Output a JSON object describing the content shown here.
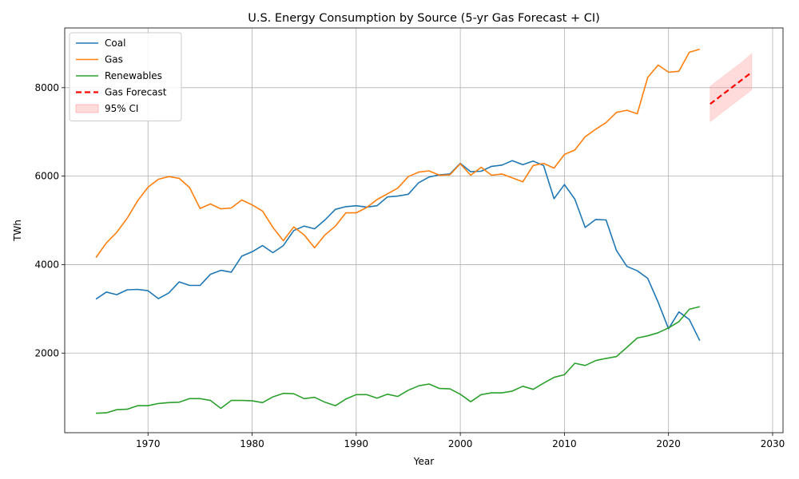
{
  "chart_data": {
    "type": "line",
    "title": "U.S. Energy Consumption by Source (5-yr Gas Forecast + CI)",
    "xlabel": "Year",
    "ylabel": "TWh",
    "xlim": [
      1962,
      2031
    ],
    "ylim": [
      200,
      9350
    ],
    "x_ticks": [
      1970,
      1980,
      1990,
      2000,
      2010,
      2020,
      2030
    ],
    "y_ticks": [
      2000,
      4000,
      6000,
      8000
    ],
    "grid": true,
    "legend_position": "upper-left",
    "series": [
      {
        "name": "Coal",
        "color": "#1f77b4",
        "style": "solid",
        "x": [
          1965,
          1966,
          1967,
          1968,
          1969,
          1970,
          1971,
          1972,
          1973,
          1974,
          1975,
          1976,
          1977,
          1978,
          1979,
          1980,
          1981,
          1982,
          1983,
          1984,
          1985,
          1986,
          1987,
          1988,
          1989,
          1990,
          1991,
          1992,
          1993,
          1994,
          1995,
          1996,
          1997,
          1998,
          1999,
          2000,
          2001,
          2002,
          2003,
          2004,
          2005,
          2006,
          2007,
          2008,
          2009,
          2010,
          2011,
          2012,
          2013,
          2014,
          2015,
          2016,
          2017,
          2018,
          2019,
          2020,
          2021,
          2022,
          2023
        ],
        "values": [
          3220,
          3380,
          3320,
          3430,
          3440,
          3410,
          3230,
          3360,
          3610,
          3530,
          3530,
          3780,
          3870,
          3830,
          4190,
          4290,
          4430,
          4270,
          4430,
          4770,
          4870,
          4810,
          5010,
          5250,
          5310,
          5330,
          5300,
          5330,
          5530,
          5550,
          5590,
          5850,
          5980,
          6030,
          6050,
          6290,
          6100,
          6110,
          6220,
          6250,
          6350,
          6260,
          6340,
          6240,
          5490,
          5810,
          5480,
          4840,
          5020,
          5010,
          4320,
          3960,
          3860,
          3690,
          3150,
          2550,
          2930,
          2760,
          2280
        ]
      },
      {
        "name": "Gas",
        "color": "#ff7f0e",
        "style": "solid",
        "x": [
          1965,
          1966,
          1967,
          1968,
          1969,
          1970,
          1971,
          1972,
          1973,
          1974,
          1975,
          1976,
          1977,
          1978,
          1979,
          1980,
          1981,
          1982,
          1983,
          1984,
          1985,
          1986,
          1987,
          1988,
          1989,
          1990,
          1991,
          1992,
          1993,
          1994,
          1995,
          1996,
          1997,
          1998,
          1999,
          2000,
          2001,
          2002,
          2003,
          2004,
          2005,
          2006,
          2007,
          2008,
          2009,
          2010,
          2011,
          2012,
          2013,
          2014,
          2015,
          2016,
          2017,
          2018,
          2019,
          2020,
          2021,
          2022,
          2023
        ],
        "values": [
          4160,
          4490,
          4730,
          5050,
          5440,
          5750,
          5930,
          5990,
          5950,
          5740,
          5270,
          5370,
          5260,
          5280,
          5460,
          5350,
          5210,
          4840,
          4540,
          4850,
          4670,
          4380,
          4670,
          4870,
          5170,
          5170,
          5290,
          5470,
          5600,
          5730,
          5990,
          6090,
          6120,
          6020,
          6030,
          6280,
          6020,
          6200,
          6020,
          6050,
          5960,
          5870,
          6240,
          6290,
          6180,
          6490,
          6590,
          6890,
          7060,
          7210,
          7440,
          7490,
          7410,
          8230,
          8510,
          8350,
          8370,
          8800,
          8870
        ]
      },
      {
        "name": "Renewables",
        "color": "#2ca02c",
        "style": "solid",
        "x": [
          1965,
          1966,
          1967,
          1968,
          1969,
          1970,
          1971,
          1972,
          1973,
          1974,
          1975,
          1976,
          1977,
          1978,
          1979,
          1980,
          1981,
          1982,
          1983,
          1984,
          1985,
          1986,
          1987,
          1988,
          1989,
          1990,
          1991,
          1992,
          1993,
          1994,
          1995,
          1996,
          1997,
          1998,
          1999,
          2000,
          2001,
          2002,
          2003,
          2004,
          2005,
          2006,
          2007,
          2008,
          2009,
          2010,
          2011,
          2012,
          2013,
          2014,
          2015,
          2016,
          2017,
          2018,
          2019,
          2020,
          2021,
          2022,
          2023
        ],
        "values": [
          640,
          650,
          720,
          730,
          810,
          810,
          860,
          880,
          890,
          970,
          970,
          930,
          750,
          930,
          930,
          920,
          880,
          1010,
          1090,
          1080,
          970,
          1000,
          890,
          810,
          960,
          1060,
          1060,
          980,
          1070,
          1020,
          1160,
          1260,
          1300,
          1200,
          1190,
          1070,
          900,
          1060,
          1100,
          1100,
          1140,
          1250,
          1180,
          1320,
          1450,
          1510,
          1770,
          1720,
          1830,
          1880,
          1920,
          2130,
          2340,
          2390,
          2460,
          2570,
          2710,
          2990,
          3050
        ]
      },
      {
        "name": "Gas Forecast",
        "color": "#ff0000",
        "style": "dashed",
        "x": [
          2024,
          2025,
          2026,
          2027,
          2028
        ],
        "values": [
          7630,
          7810,
          7990,
          8170,
          8350
        ]
      }
    ],
    "confidence_band": {
      "name": "95% CI",
      "color": "#ff9999",
      "x": [
        2024,
        2025,
        2026,
        2027,
        2028
      ],
      "lower": [
        7230,
        7410,
        7590,
        7770,
        7950
      ],
      "upper": [
        8030,
        8210,
        8390,
        8570,
        8770
      ]
    }
  }
}
